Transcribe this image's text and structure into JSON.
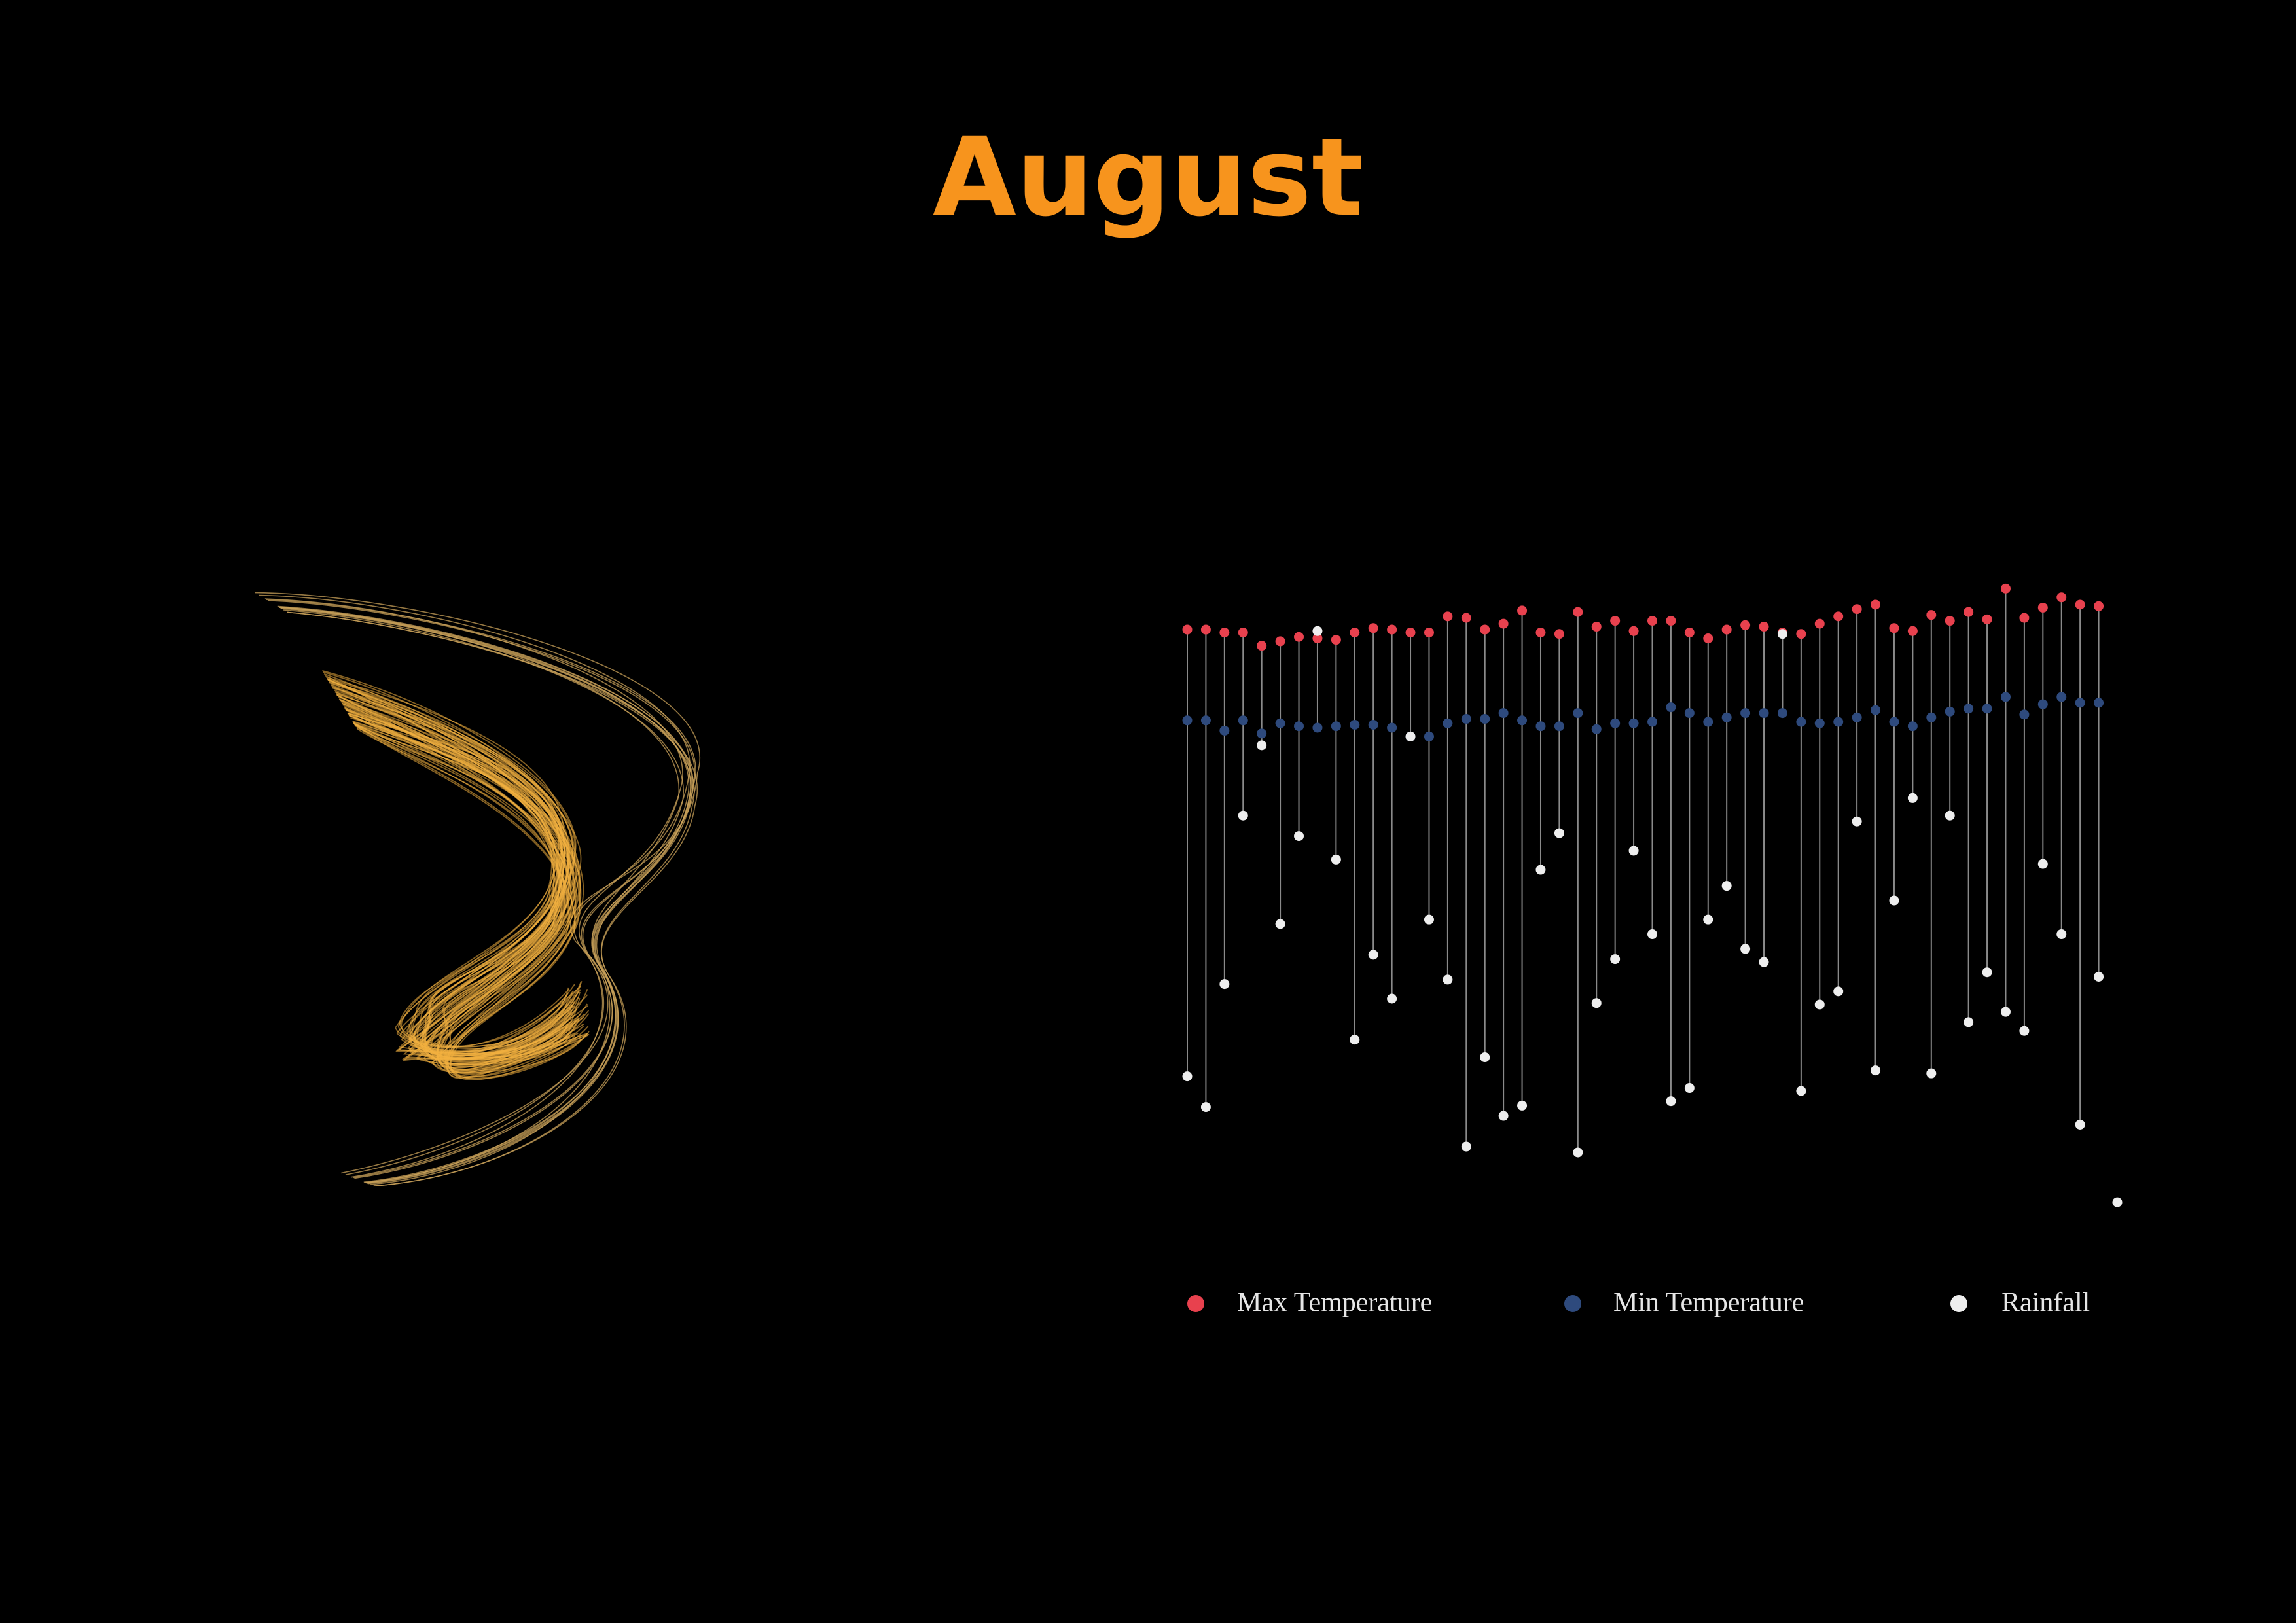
{
  "chart_data": {
    "type": "lollipop",
    "title": "August",
    "categories": [
      null,
      null,
      null,
      null,
      null,
      null,
      null,
      null,
      null,
      null,
      null,
      null,
      null,
      null,
      null,
      null,
      null,
      null,
      null,
      null,
      null,
      null,
      null,
      null,
      null,
      null,
      null,
      null,
      null,
      null,
      null,
      null,
      null,
      null,
      null,
      null,
      null,
      null,
      null,
      null,
      null,
      null,
      null,
      null,
      null,
      null,
      null,
      null,
      null,
      null,
      null
    ],
    "ylim": [
      0,
      460
    ],
    "stem_color": "#8a8a8a",
    "series": [
      {
        "name": "Max Temperature",
        "color": "#e8414e",
        "values": [
          420,
          420,
          418,
          418,
          409,
          412,
          415,
          414,
          413,
          418,
          421,
          420,
          418,
          418,
          429,
          428,
          420,
          424,
          433,
          418,
          417,
          432,
          422,
          426,
          419,
          426,
          426,
          418,
          414,
          420,
          423,
          422,
          418,
          417,
          424,
          429,
          434,
          437,
          421,
          419,
          430,
          426,
          432,
          427,
          448,
          428,
          435,
          442,
          437,
          436,
          null
        ]
      },
      {
        "name": "Min Temperature",
        "color": "#2e4a7d",
        "values": [
          358,
          358,
          351,
          358,
          349,
          356,
          354,
          353,
          354,
          355,
          355,
          353,
          347,
          347,
          356,
          359,
          359,
          363,
          358,
          354,
          354,
          363,
          352,
          356,
          356,
          357,
          367,
          363,
          357,
          360,
          363,
          363,
          363,
          357,
          356,
          357,
          360,
          365,
          357,
          354,
          360,
          364,
          366,
          366,
          374,
          362,
          369,
          374,
          370,
          370,
          null
        ]
      },
      {
        "name": "Rainfall",
        "color": "#eeeeee",
        "values": [
          115,
          94,
          178,
          293,
          341,
          219,
          279,
          419,
          263,
          140,
          198,
          168,
          347,
          222,
          181,
          67,
          128,
          88,
          95,
          256,
          281,
          63,
          165,
          195,
          269,
          212,
          98,
          107,
          222,
          245,
          202,
          193,
          417,
          105,
          164,
          173,
          289,
          119,
          235,
          305,
          117,
          293,
          152,
          186,
          159,
          146,
          260,
          212,
          82,
          183,
          29
        ]
      }
    ]
  }
}
